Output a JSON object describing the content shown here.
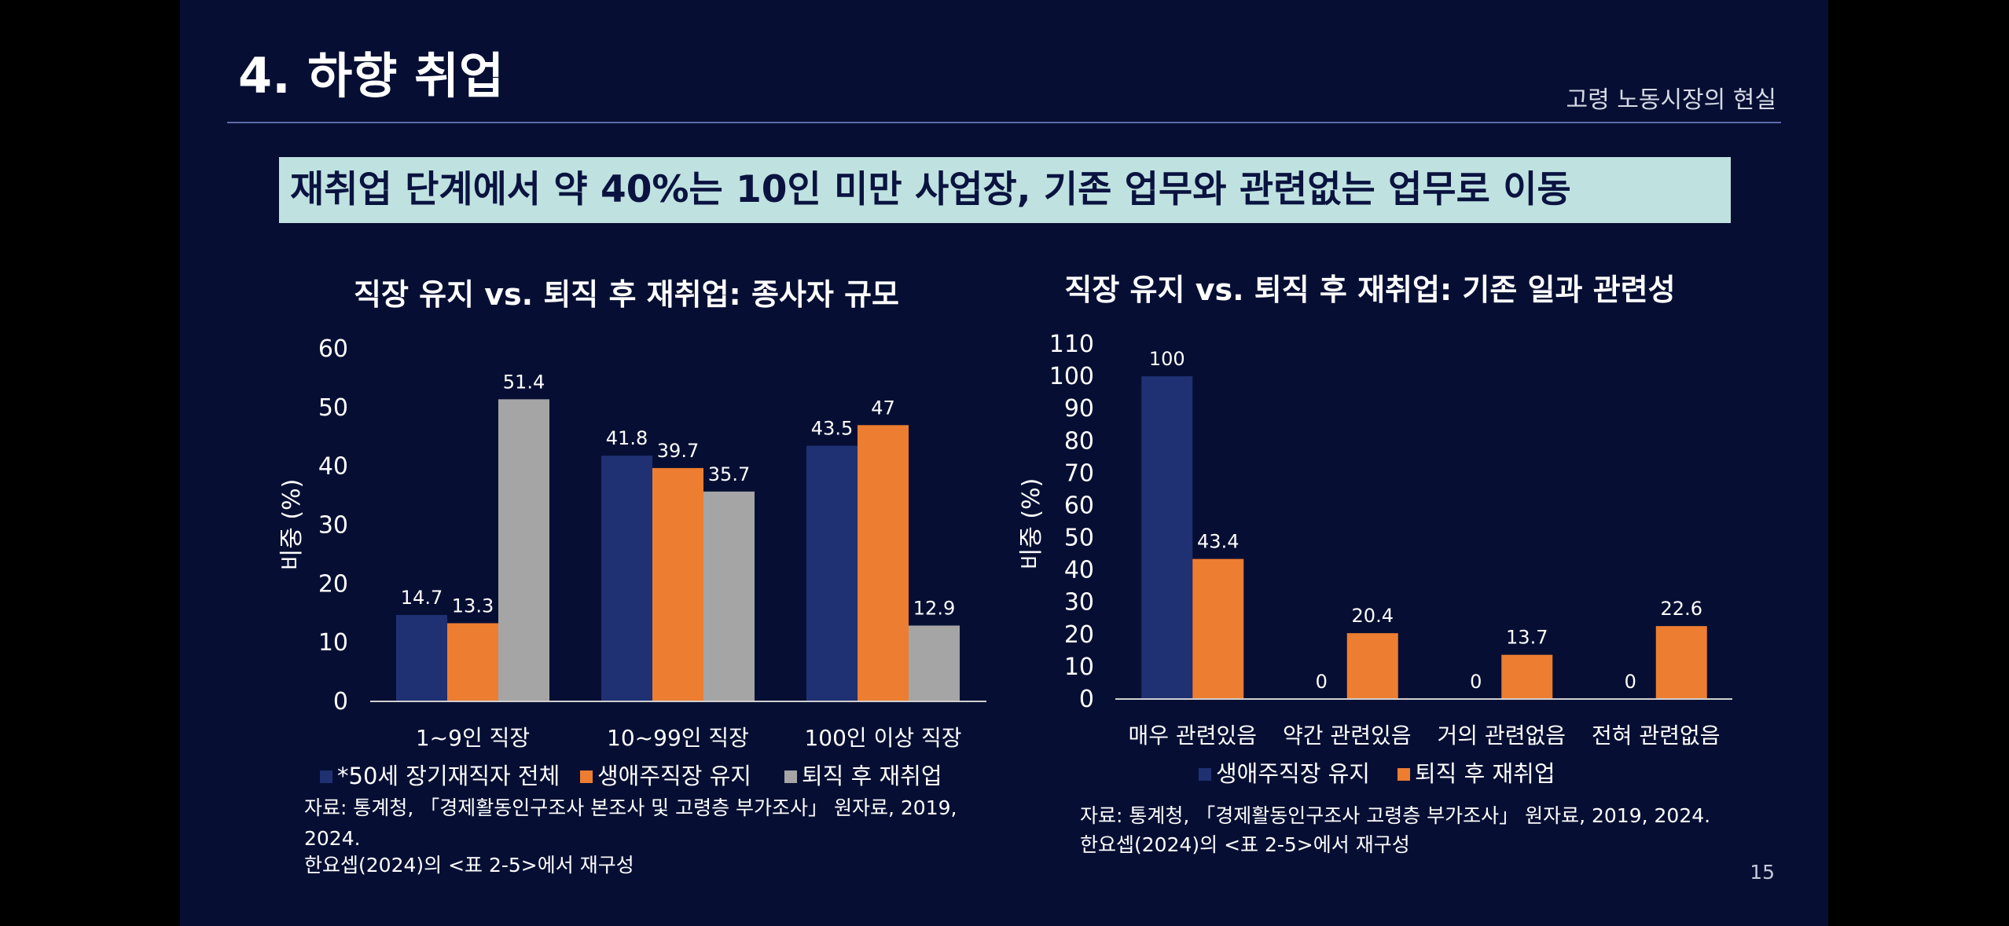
{
  "slide": {
    "title": "4. 하향 취업",
    "section": "고령 노동시장의 현실",
    "banner": "재취업 단계에서 약 40%는 10인 미만 사업장, 기존 업무와 관련없는 업무로 이동",
    "page_number": "15"
  },
  "chart_data": [
    {
      "type": "bar",
      "title": "직장 유지 vs. 퇴직 후 재취업: 종사자 규모",
      "ylabel": "비중 (%)",
      "xlabel": "",
      "ylim": [
        0,
        60
      ],
      "yticks": [
        0,
        10,
        20,
        30,
        40,
        50,
        60
      ],
      "grid": false,
      "legend_position": "bottom",
      "categories": [
        "1~9인 직장",
        "10~99인 직장",
        "100인 이상 직장"
      ],
      "series": [
        {
          "name": "*50세 장기재직자 전체",
          "color": "#1f3173",
          "values": [
            14.7,
            41.8,
            43.5
          ]
        },
        {
          "name": "생애주직장 유지",
          "color": "#ed7d31",
          "values": [
            13.3,
            39.7,
            47
          ]
        },
        {
          "name": "퇴직 후 재취업",
          "color": "#a5a5a5",
          "values": [
            51.4,
            35.7,
            12.9
          ]
        }
      ],
      "source": [
        "자료: 통계청, 「경제활동인구조사 본조사 및 고령층 부가조사」 원자료, 2019,",
        "2024.",
        "한요셉(2024)의 <표 2-5>에서 재구성"
      ]
    },
    {
      "type": "bar",
      "title": "직장 유지 vs. 퇴직 후 재취업: 기존 일과  관련성",
      "ylabel": "비중 (%)",
      "xlabel": "",
      "ylim": [
        0,
        110
      ],
      "yticks": [
        0,
        10,
        20,
        30,
        40,
        50,
        60,
        70,
        80,
        90,
        100,
        110
      ],
      "grid": false,
      "legend_position": "bottom",
      "categories": [
        "매우 관련있음",
        "약간 관련있음",
        "거의 관련없음",
        "전혀 관련없음"
      ],
      "series": [
        {
          "name": "생애주직장 유지",
          "color": "#1f3173",
          "values": [
            100,
            0,
            0,
            0
          ]
        },
        {
          "name": "퇴직 후 재취업",
          "color": "#ed7d31",
          "values": [
            43.4,
            20.4,
            13.7,
            22.6
          ]
        }
      ],
      "source": [
        "자료: 통계청, 「경제활동인구조사 고령층 부가조사」 원자료, 2019, 2024.",
        "한요셉(2024)의 <표 2-5>에서 재구성"
      ]
    }
  ]
}
